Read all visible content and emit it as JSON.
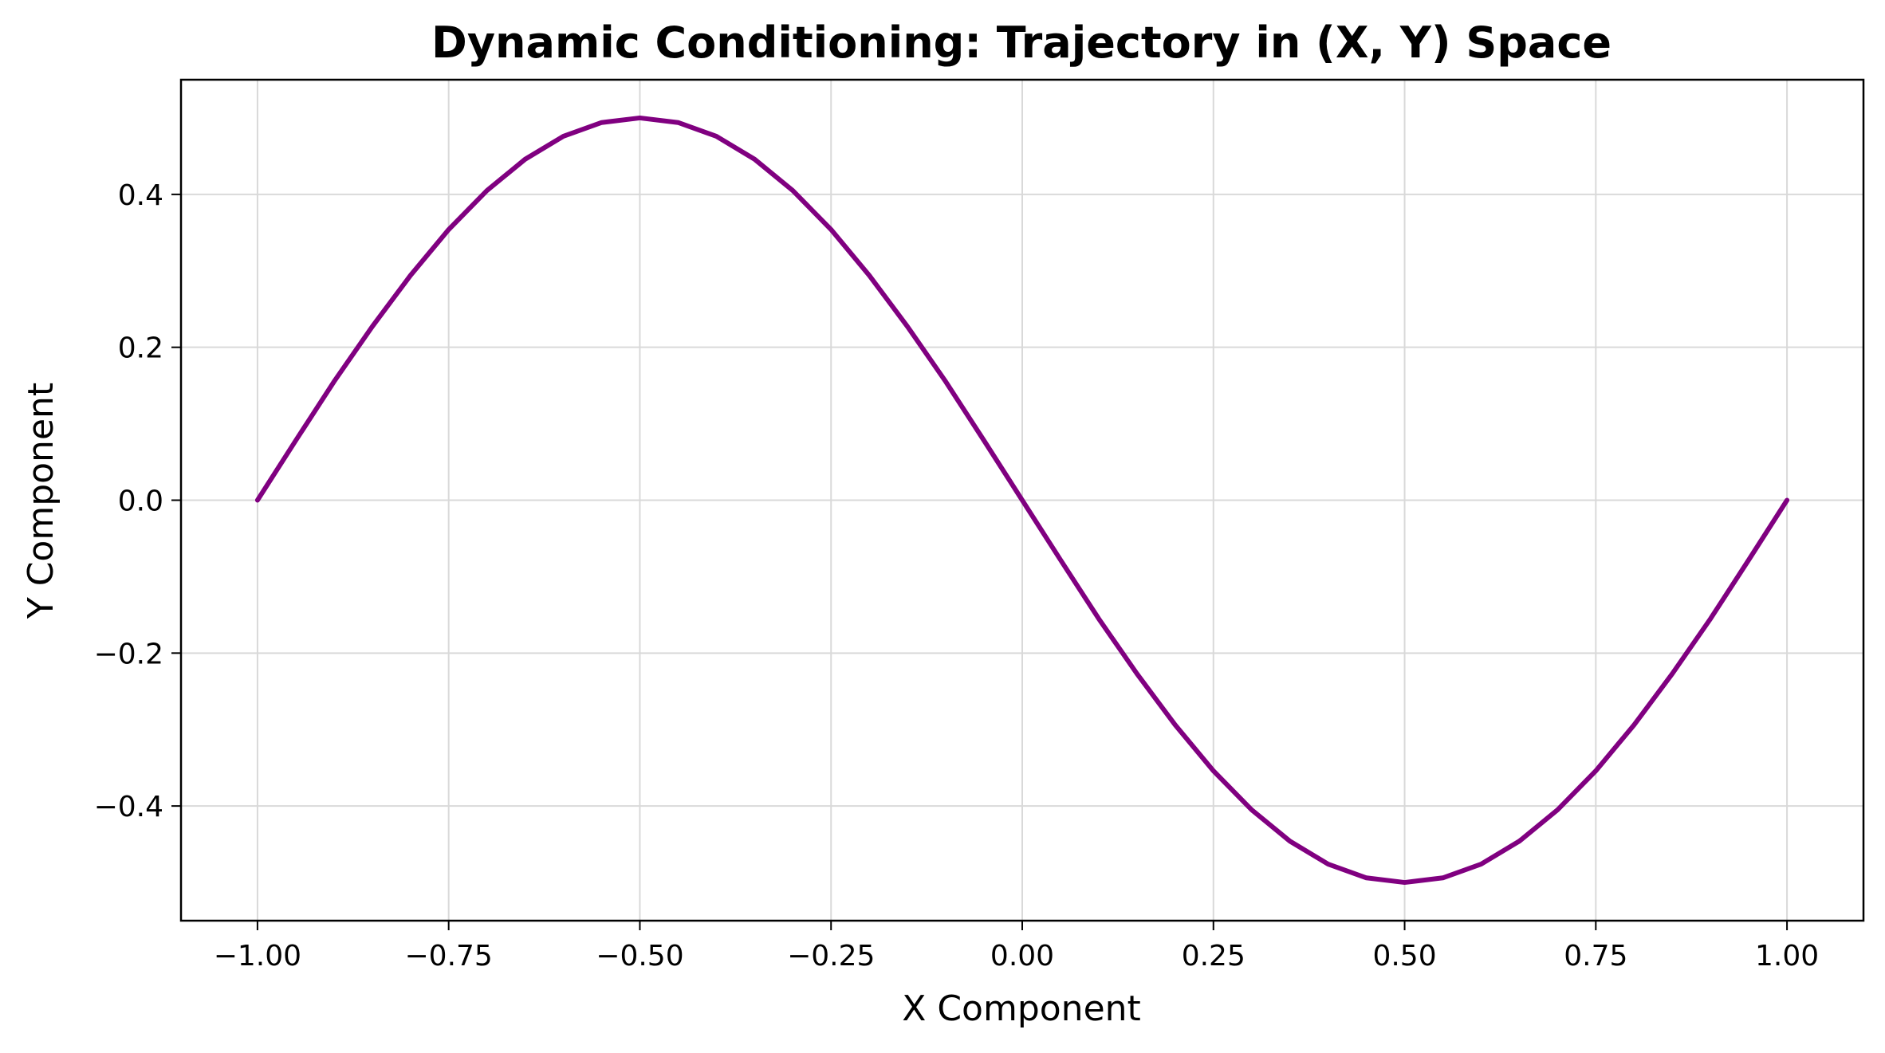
{
  "chart_data": {
    "type": "line",
    "title": "Dynamic Conditioning: Trajectory in (X, Y) Space",
    "xlabel": "X Component",
    "ylabel": "Y Component",
    "xlim": [
      -1.1,
      1.1
    ],
    "ylim": [
      -0.55,
      0.55
    ],
    "grid": true,
    "x_ticks": [
      -1.0,
      -0.75,
      -0.5,
      -0.25,
      0.0,
      0.25,
      0.5,
      0.75,
      1.0
    ],
    "x_tick_labels": [
      "−1.00",
      "−0.75",
      "−0.50",
      "−0.25",
      "0.00",
      "0.25",
      "0.50",
      "0.75",
      "1.00"
    ],
    "y_ticks": [
      -0.4,
      -0.2,
      0.0,
      0.2,
      0.4
    ],
    "y_tick_labels": [
      "−0.4",
      "−0.2",
      "0.0",
      "0.2",
      "0.4"
    ],
    "series": [
      {
        "color": "#800080",
        "x": [
          -1.0,
          -0.95,
          -0.9,
          -0.85,
          -0.8,
          -0.75,
          -0.7,
          -0.65,
          -0.6,
          -0.55,
          -0.5,
          -0.45,
          -0.4,
          -0.35,
          -0.3,
          -0.25,
          -0.2,
          -0.15,
          -0.1,
          -0.05,
          0.0,
          0.05,
          0.1,
          0.15,
          0.2,
          0.25,
          0.3,
          0.35,
          0.4,
          0.45,
          0.5,
          0.55,
          0.6,
          0.65,
          0.7,
          0.75,
          0.8,
          0.85,
          0.9,
          0.95,
          1.0
        ],
        "y": [
          0.0,
          0.078,
          0.155,
          0.227,
          0.294,
          0.354,
          0.405,
          0.446,
          0.476,
          0.494,
          0.5,
          0.494,
          0.476,
          0.446,
          0.405,
          0.354,
          0.294,
          0.227,
          0.155,
          0.078,
          0.0,
          -0.078,
          -0.155,
          -0.227,
          -0.294,
          -0.354,
          -0.405,
          -0.446,
          -0.476,
          -0.494,
          -0.5,
          -0.494,
          -0.476,
          -0.446,
          -0.405,
          -0.354,
          -0.294,
          -0.227,
          -0.155,
          -0.078,
          0.0
        ]
      }
    ]
  }
}
